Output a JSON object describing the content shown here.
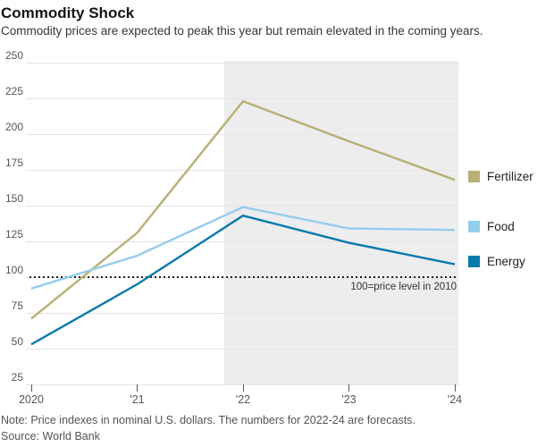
{
  "header": {
    "title": "Commodity Shock",
    "subtitle": "Commodity prices are expected to peak this year but remain elevated in the coming years."
  },
  "footer": {
    "note": "Note: Price indexes in nominal U.S. dollars. The numbers for 2022-24 are forecasts.",
    "source": "Source: World Bank"
  },
  "colors": {
    "fertilizer": "#b7b075",
    "food": "#94ccec",
    "energy": "#0879ab",
    "forecast_shade": "#ededee",
    "gridline": "#e4e4e4",
    "reference_line": "#1f1f1f"
  },
  "chart_data": {
    "type": "line",
    "title": "Commodity Shock",
    "categories": [
      "2020",
      "'21",
      "'22",
      "'23",
      "'24"
    ],
    "series": [
      {
        "name": "Fertilizer",
        "color": "#b7b075",
        "values": [
          71,
          131,
          223,
          195,
          168
        ]
      },
      {
        "name": "Food",
        "color": "#94ccec",
        "values": [
          92,
          115,
          149,
          134,
          133
        ]
      },
      {
        "name": "Energy",
        "color": "#0879ab",
        "values": [
          53,
          95,
          143,
          124,
          109
        ]
      }
    ],
    "ylabel": "",
    "xlabel": "",
    "ylim": [
      25,
      250
    ],
    "ytick_step": 25,
    "grid": "horizontal",
    "legend_position": "right",
    "reference_line": {
      "value": 100,
      "label": "100=price level in 2010"
    },
    "forecast_region": {
      "start_category_index": 1.82,
      "end_category_index": 4,
      "note": "2022-24 are forecasts"
    }
  }
}
